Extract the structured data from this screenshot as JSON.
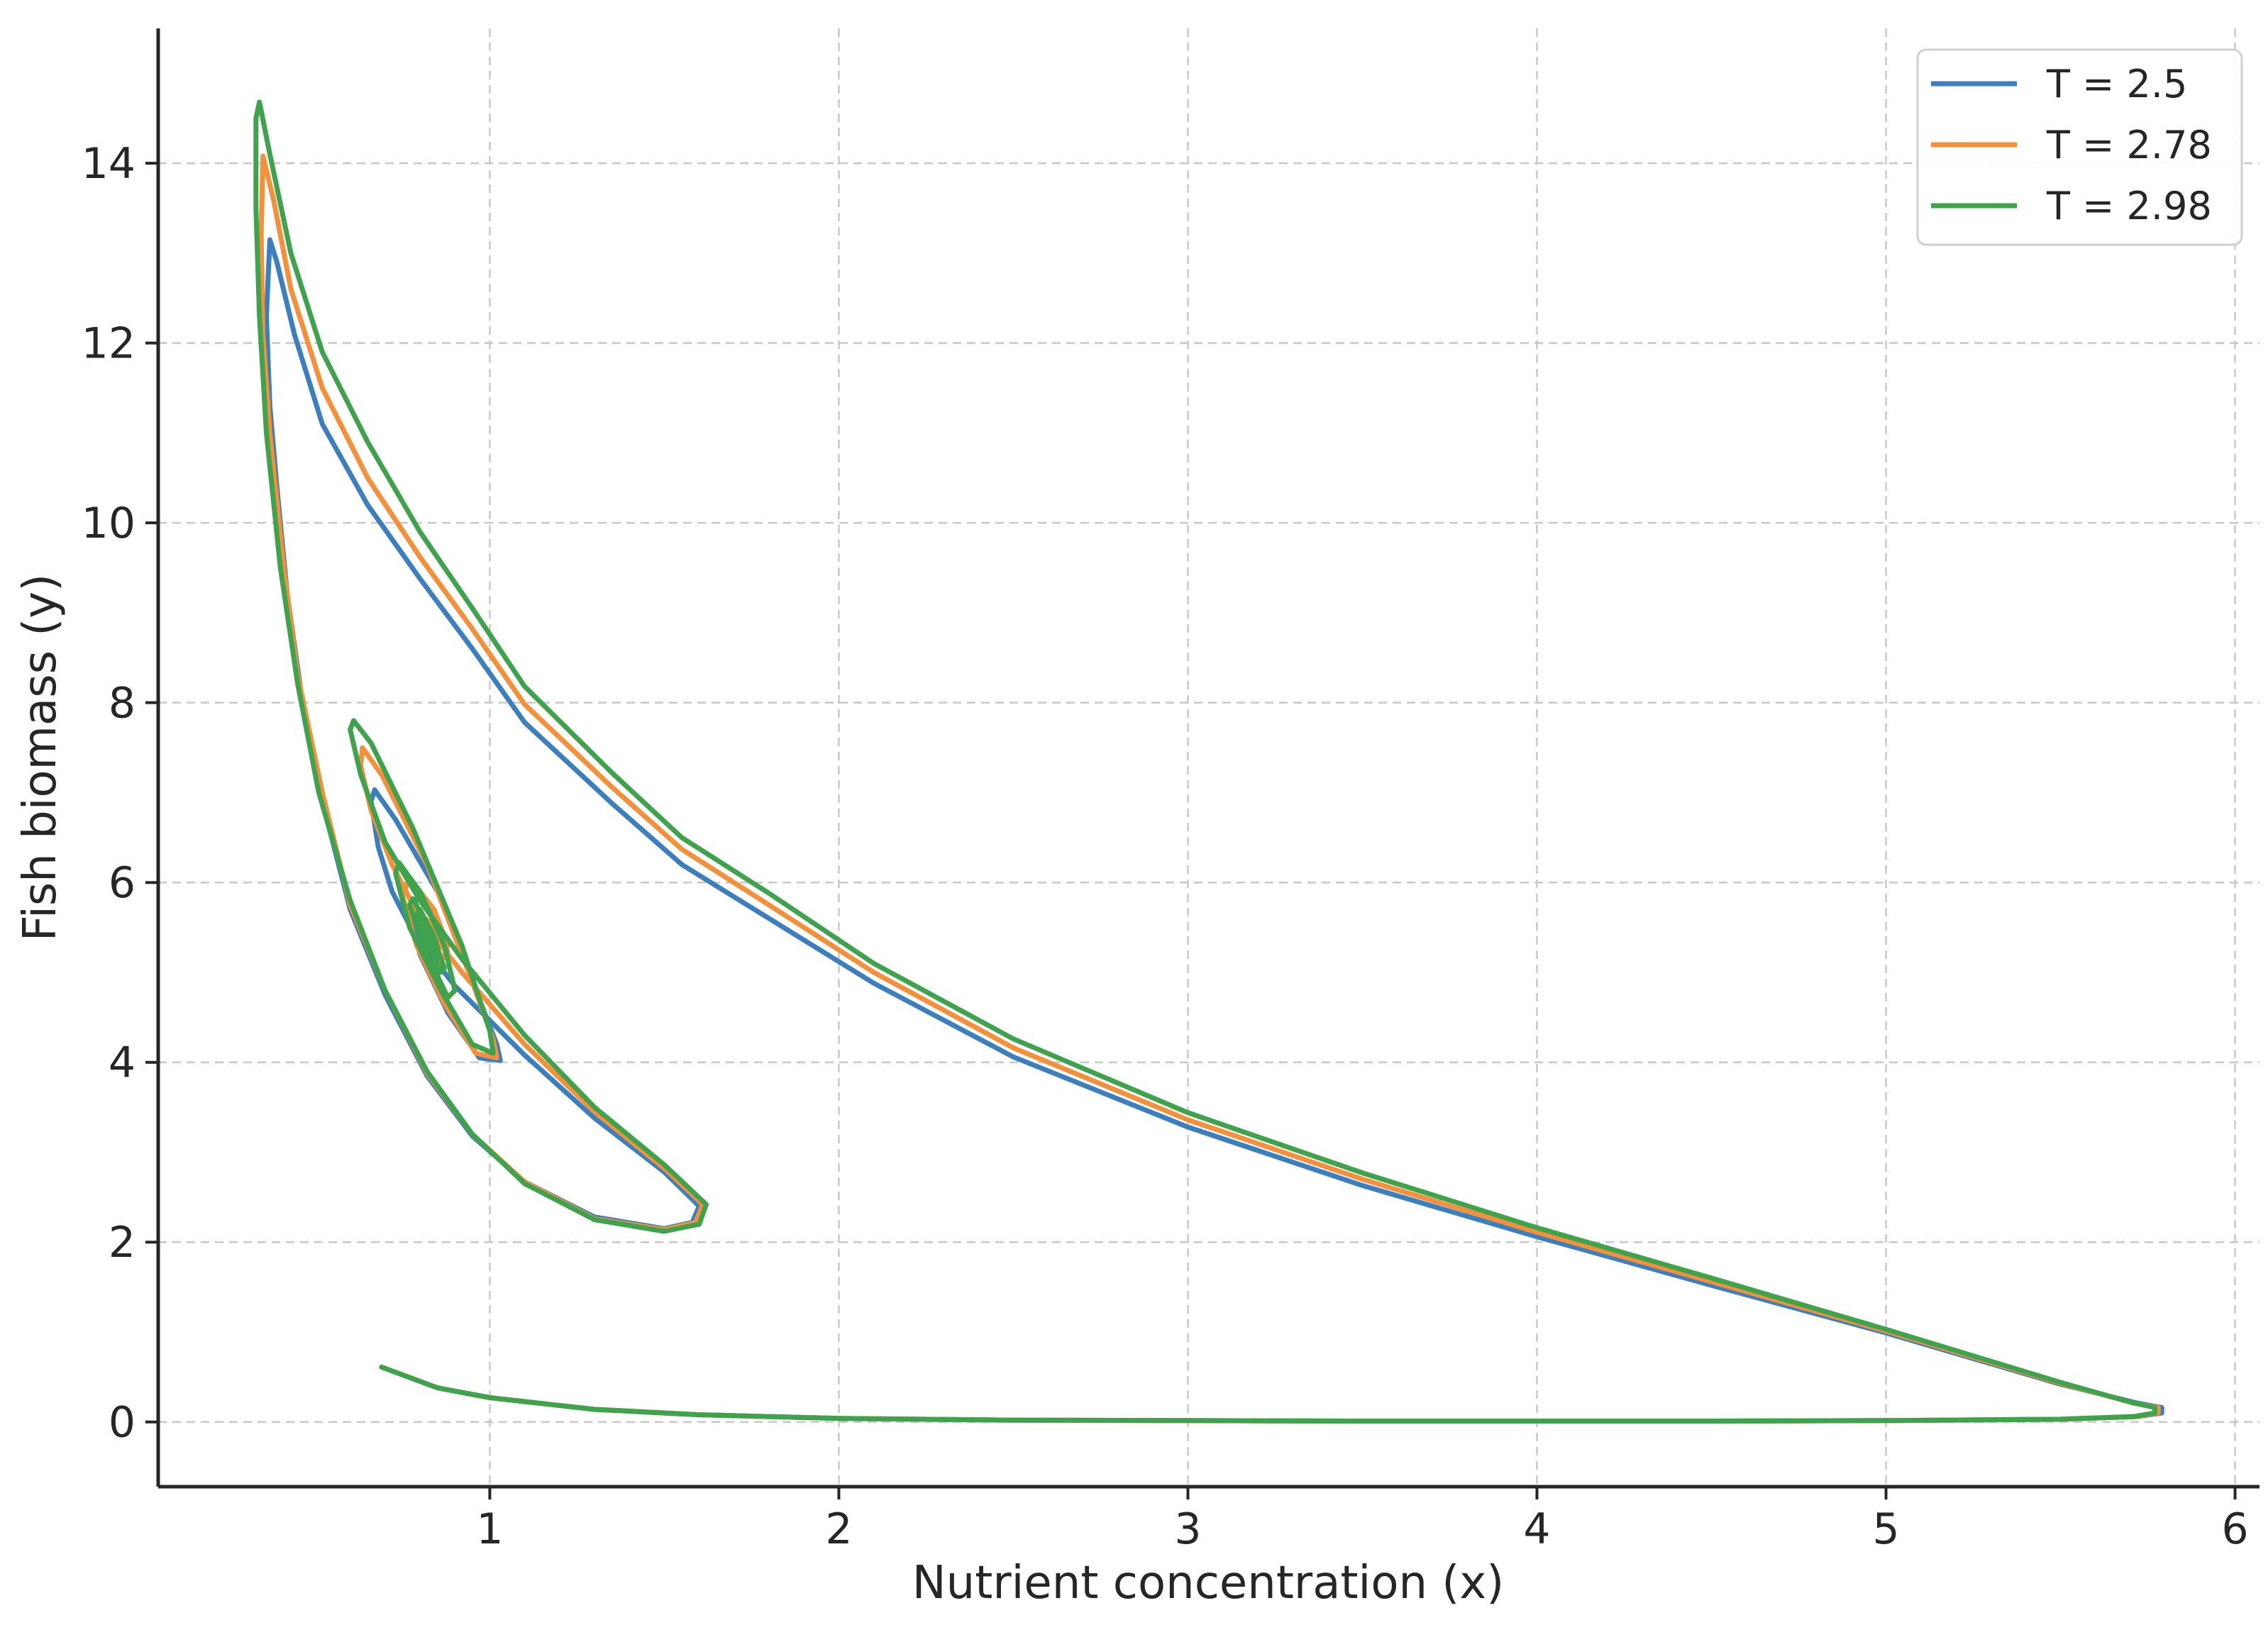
{
  "chart_data": {
    "type": "line",
    "title": "",
    "xlabel": "Nutrient concentration (x)",
    "ylabel": "Fish biomass (y)",
    "xlim": [
      0.05,
      6.07
    ],
    "ylim": [
      -0.72,
      15.5
    ],
    "xticks": [
      1,
      2,
      3,
      4,
      5,
      6
    ],
    "yticks": [
      0,
      2,
      4,
      6,
      8,
      10,
      12,
      14
    ],
    "xtick_labels": [
      "1",
      "2",
      "3",
      "4",
      "5",
      "6"
    ],
    "ytick_labels": [
      "0",
      "2",
      "4",
      "6",
      "8",
      "10",
      "12",
      "14"
    ],
    "grid": true,
    "legend_position": "top-right",
    "series": [
      {
        "name": "T = 2.5",
        "color": "#3b7fbe",
        "points": [
          [
            0.69,
            0.61
          ],
          [
            0.85,
            0.38
          ],
          [
            1.0,
            0.27
          ],
          [
            1.3,
            0.14
          ],
          [
            1.6,
            0.08
          ],
          [
            2.0,
            0.04
          ],
          [
            2.5,
            0.02
          ],
          [
            3.0,
            0.015
          ],
          [
            3.5,
            0.01
          ],
          [
            4.0,
            0.01
          ],
          [
            4.5,
            0.01
          ],
          [
            5.0,
            0.015
          ],
          [
            5.5,
            0.03
          ],
          [
            5.72,
            0.06
          ],
          [
            5.79,
            0.1
          ],
          [
            5.79,
            0.16
          ],
          [
            5.72,
            0.21
          ],
          [
            5.5,
            0.42
          ],
          [
            5.0,
            0.99
          ],
          [
            4.5,
            1.52
          ],
          [
            4.0,
            2.06
          ],
          [
            3.5,
            2.63
          ],
          [
            3.0,
            3.28
          ],
          [
            2.5,
            4.06
          ],
          [
            2.1,
            4.88
          ],
          [
            1.8,
            5.6
          ],
          [
            1.55,
            6.2
          ],
          [
            1.35,
            6.88
          ],
          [
            1.1,
            7.78
          ],
          [
            0.95,
            8.6
          ],
          [
            0.8,
            9.38
          ],
          [
            0.65,
            10.2
          ],
          [
            0.52,
            11.1
          ],
          [
            0.44,
            12.1
          ],
          [
            0.39,
            12.9
          ],
          [
            0.37,
            13.15
          ],
          [
            0.36,
            12.3
          ],
          [
            0.37,
            11.3
          ],
          [
            0.39,
            10.4
          ],
          [
            0.42,
            9.2
          ],
          [
            0.46,
            8.1
          ],
          [
            0.52,
            6.9
          ],
          [
            0.6,
            5.7
          ],
          [
            0.7,
            4.75
          ],
          [
            0.82,
            3.85
          ],
          [
            0.95,
            3.18
          ],
          [
            1.1,
            2.67
          ],
          [
            1.3,
            2.28
          ],
          [
            1.5,
            2.15
          ],
          [
            1.58,
            2.22
          ],
          [
            1.6,
            2.4
          ],
          [
            1.5,
            2.78
          ],
          [
            1.3,
            3.38
          ],
          [
            1.1,
            4.08
          ],
          [
            0.9,
            4.85
          ],
          [
            0.78,
            5.45
          ],
          [
            0.72,
            5.9
          ],
          [
            0.68,
            6.4
          ],
          [
            0.66,
            6.9
          ],
          [
            0.67,
            7.03
          ],
          [
            0.73,
            6.7
          ],
          [
            0.85,
            5.9
          ],
          [
            0.95,
            4.9
          ],
          [
            1.02,
            4.2
          ],
          [
            1.03,
            4.02
          ],
          [
            0.97,
            4.05
          ],
          [
            0.88,
            4.55
          ],
          [
            0.8,
            5.2
          ],
          [
            0.77,
            5.7
          ],
          [
            0.8,
            5.85
          ],
          [
            0.86,
            5.5
          ],
          [
            0.88,
            5.2
          ],
          [
            0.85,
            5.15
          ],
          [
            0.82,
            5.4
          ],
          [
            0.82,
            5.55
          ],
          [
            0.84,
            5.4
          ],
          [
            0.85,
            5.35
          ]
        ]
      },
      {
        "name": "T = 2.78",
        "color": "#f4903a",
        "points": [
          [
            0.69,
            0.61
          ],
          [
            0.85,
            0.38
          ],
          [
            1.0,
            0.27
          ],
          [
            1.3,
            0.14
          ],
          [
            1.6,
            0.08
          ],
          [
            2.0,
            0.04
          ],
          [
            2.5,
            0.02
          ],
          [
            3.0,
            0.015
          ],
          [
            3.5,
            0.01
          ],
          [
            4.0,
            0.01
          ],
          [
            4.5,
            0.01
          ],
          [
            5.0,
            0.015
          ],
          [
            5.5,
            0.03
          ],
          [
            5.72,
            0.06
          ],
          [
            5.78,
            0.1
          ],
          [
            5.78,
            0.16
          ],
          [
            5.71,
            0.21
          ],
          [
            5.5,
            0.43
          ],
          [
            5.0,
            1.01
          ],
          [
            4.5,
            1.56
          ],
          [
            4.0,
            2.11
          ],
          [
            3.5,
            2.7
          ],
          [
            3.0,
            3.36
          ],
          [
            2.5,
            4.16
          ],
          [
            2.1,
            5.0
          ],
          [
            1.8,
            5.75
          ],
          [
            1.55,
            6.37
          ],
          [
            1.35,
            7.06
          ],
          [
            1.1,
            7.98
          ],
          [
            0.95,
            8.82
          ],
          [
            0.8,
            9.62
          ],
          [
            0.65,
            10.5
          ],
          [
            0.52,
            11.5
          ],
          [
            0.43,
            12.6
          ],
          [
            0.38,
            13.6
          ],
          [
            0.35,
            14.08
          ],
          [
            0.345,
            13.2
          ],
          [
            0.35,
            12.1
          ],
          [
            0.37,
            11.0
          ],
          [
            0.41,
            9.5
          ],
          [
            0.45,
            8.3
          ],
          [
            0.52,
            7.0
          ],
          [
            0.6,
            5.75
          ],
          [
            0.7,
            4.8
          ],
          [
            0.82,
            3.88
          ],
          [
            0.95,
            3.2
          ],
          [
            1.1,
            2.67
          ],
          [
            1.3,
            2.26
          ],
          [
            1.5,
            2.14
          ],
          [
            1.59,
            2.22
          ],
          [
            1.61,
            2.42
          ],
          [
            1.5,
            2.82
          ],
          [
            1.3,
            3.45
          ],
          [
            1.1,
            4.2
          ],
          [
            0.92,
            5.0
          ],
          [
            0.8,
            5.6
          ],
          [
            0.72,
            6.2
          ],
          [
            0.66,
            6.8
          ],
          [
            0.63,
            7.3
          ],
          [
            0.635,
            7.5
          ],
          [
            0.69,
            7.2
          ],
          [
            0.82,
            6.2
          ],
          [
            0.94,
            5.0
          ],
          [
            1.01,
            4.25
          ],
          [
            1.02,
            4.05
          ],
          [
            0.96,
            4.1
          ],
          [
            0.87,
            4.65
          ],
          [
            0.79,
            5.3
          ],
          [
            0.75,
            5.85
          ],
          [
            0.77,
            6.05
          ],
          [
            0.84,
            5.7
          ],
          [
            0.88,
            5.3
          ],
          [
            0.86,
            5.1
          ],
          [
            0.82,
            5.35
          ],
          [
            0.8,
            5.65
          ],
          [
            0.83,
            5.55
          ],
          [
            0.85,
            5.35
          ],
          [
            0.84,
            5.3
          ]
        ]
      },
      {
        "name": "T = 2.98",
        "color": "#3fa34d",
        "points": [
          [
            0.69,
            0.61
          ],
          [
            0.85,
            0.38
          ],
          [
            1.0,
            0.27
          ],
          [
            1.3,
            0.14
          ],
          [
            1.6,
            0.08
          ],
          [
            2.0,
            0.04
          ],
          [
            2.5,
            0.02
          ],
          [
            3.0,
            0.015
          ],
          [
            3.5,
            0.01
          ],
          [
            4.0,
            0.01
          ],
          [
            4.5,
            0.01
          ],
          [
            5.0,
            0.015
          ],
          [
            5.5,
            0.03
          ],
          [
            5.71,
            0.06
          ],
          [
            5.77,
            0.1
          ],
          [
            5.77,
            0.16
          ],
          [
            5.7,
            0.22
          ],
          [
            5.5,
            0.44
          ],
          [
            5.0,
            1.03
          ],
          [
            4.5,
            1.6
          ],
          [
            4.0,
            2.16
          ],
          [
            3.5,
            2.77
          ],
          [
            3.0,
            3.44
          ],
          [
            2.5,
            4.26
          ],
          [
            2.1,
            5.1
          ],
          [
            1.8,
            5.88
          ],
          [
            1.55,
            6.5
          ],
          [
            1.35,
            7.22
          ],
          [
            1.1,
            8.18
          ],
          [
            0.95,
            9.05
          ],
          [
            0.8,
            9.9
          ],
          [
            0.65,
            10.9
          ],
          [
            0.52,
            11.9
          ],
          [
            0.43,
            13.0
          ],
          [
            0.37,
            14.1
          ],
          [
            0.34,
            14.68
          ],
          [
            0.33,
            14.5
          ],
          [
            0.33,
            13.5
          ],
          [
            0.34,
            12.3
          ],
          [
            0.36,
            11.0
          ],
          [
            0.4,
            9.5
          ],
          [
            0.45,
            8.2
          ],
          [
            0.51,
            7.0
          ],
          [
            0.6,
            5.8
          ],
          [
            0.7,
            4.8
          ],
          [
            0.82,
            3.9
          ],
          [
            0.95,
            3.2
          ],
          [
            1.1,
            2.65
          ],
          [
            1.3,
            2.25
          ],
          [
            1.5,
            2.12
          ],
          [
            1.6,
            2.2
          ],
          [
            1.62,
            2.42
          ],
          [
            1.5,
            2.86
          ],
          [
            1.3,
            3.5
          ],
          [
            1.1,
            4.3
          ],
          [
            0.92,
            5.15
          ],
          [
            0.8,
            5.8
          ],
          [
            0.7,
            6.45
          ],
          [
            0.63,
            7.2
          ],
          [
            0.6,
            7.7
          ],
          [
            0.61,
            7.8
          ],
          [
            0.66,
            7.55
          ],
          [
            0.78,
            6.6
          ],
          [
            0.92,
            5.3
          ],
          [
            1.0,
            4.35
          ],
          [
            1.01,
            4.1
          ],
          [
            0.95,
            4.2
          ],
          [
            0.86,
            4.8
          ],
          [
            0.77,
            5.5
          ],
          [
            0.73,
            6.1
          ],
          [
            0.74,
            6.22
          ],
          [
            0.8,
            5.9
          ],
          [
            0.87,
            5.3
          ],
          [
            0.9,
            4.8
          ],
          [
            0.88,
            4.72
          ],
          [
            0.82,
            5.2
          ],
          [
            0.77,
            5.75
          ],
          [
            0.78,
            5.82
          ],
          [
            0.83,
            5.45
          ],
          [
            0.87,
            5.05
          ],
          [
            0.86,
            5.0
          ],
          [
            0.82,
            5.35
          ],
          [
            0.79,
            5.65
          ],
          [
            0.8,
            5.7
          ],
          [
            0.84,
            5.4
          ],
          [
            0.86,
            5.15
          ],
          [
            0.84,
            5.2
          ],
          [
            0.81,
            5.5
          ],
          [
            0.82,
            5.55
          ],
          [
            0.84,
            5.35
          ],
          [
            0.83,
            5.3
          ],
          [
            0.82,
            5.45
          ]
        ]
      }
    ]
  }
}
